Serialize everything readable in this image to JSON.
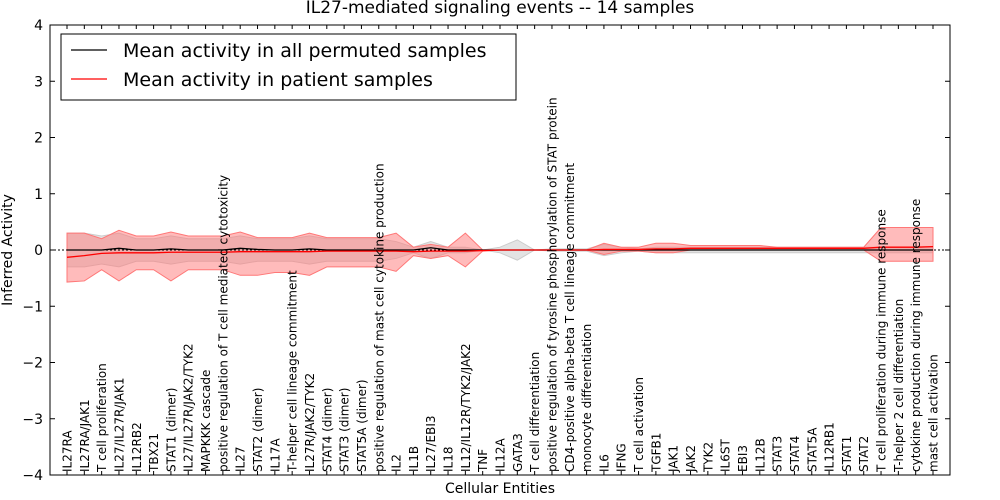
{
  "chart_data": {
    "type": "line",
    "title": "IL27-mediated signaling events -- 14 samples",
    "xlabel": "Cellular Entities",
    "ylabel": "Inferred Activity",
    "ylim": [
      -4,
      4
    ],
    "yticks": [
      -4,
      -3,
      -2,
      -1,
      0,
      1,
      2,
      3,
      4
    ],
    "ytick_labels": [
      "−4",
      "−3",
      "−2",
      "−1",
      "0",
      "1",
      "2",
      "3",
      "4"
    ],
    "legend_position": "top-left",
    "categories": [
      "IL27RA",
      "IL27RA/JAK1",
      "T cell proliferation",
      "IL27/IL27R/JAK1",
      "IL12RB2",
      "TBX21",
      "STAT1 (dimer)",
      "IL27/IL27R/JAK2/TYK2",
      "MAPKKK cascade",
      "positive regulation of T cell mediated cytotoxicity",
      "IL27",
      "STAT2 (dimer)",
      "IL17A",
      "T-helper cell lineage commitment",
      "IL27R/JAK2/TYK2",
      "STAT4 (dimer)",
      "STAT3 (dimer)",
      "STAT5A (dimer)",
      "positive regulation of mast cell cytokine production",
      "IL2",
      "IL1B",
      "IL27/EBI3",
      "IL18",
      "IL12/IL12R/TYK2/JAK2",
      "TNF",
      "IL12A",
      "GATA3",
      "T cell differentiation",
      "positive regulation of tyrosine phosphorylation of STAT protein",
      "CD4-positive alpha-beta T cell lineage commitment",
      "monocyte differentiation",
      "IL6",
      "IFNG",
      "T cell activation",
      "TGFB1",
      "JAK1",
      "JAK2",
      "TYK2",
      "IL6ST",
      "EBI3",
      "IL12B",
      "STAT3",
      "STAT4",
      "STAT5A",
      "IL12RB1",
      "STAT1",
      "STAT2",
      "T cell proliferation during immune response",
      "T-helper 2 cell differentiation",
      "cytokine production during immune response",
      "mast cell activation"
    ],
    "series": [
      {
        "name": "Mean activity in all permuted samples",
        "color": "#000000",
        "values": [
          0.0,
          0.0,
          0.0,
          0.03,
          0.0,
          0.0,
          0.02,
          0.0,
          0.0,
          0.0,
          0.03,
          0.01,
          0.0,
          0.0,
          0.02,
          0.0,
          0.0,
          0.0,
          0.0,
          0.0,
          0.0,
          0.04,
          0.0,
          0.0,
          0.0,
          0.0,
          0.0,
          0.0,
          0.0,
          0.0,
          0.0,
          0.0,
          0.0,
          0.0,
          0.0,
          0.0,
          0.0,
          0.0,
          0.0,
          0.0,
          0.0,
          0.0,
          0.0,
          0.0,
          0.0,
          0.0,
          0.0,
          0.0,
          0.0,
          0.0,
          0.0
        ],
        "band_upper": [
          0.3,
          0.3,
          0.25,
          0.3,
          0.2,
          0.2,
          0.25,
          0.2,
          0.2,
          0.2,
          0.25,
          0.2,
          0.2,
          0.2,
          0.25,
          0.2,
          0.2,
          0.2,
          0.2,
          0.15,
          0.05,
          0.15,
          0.05,
          0.05,
          0.0,
          0.05,
          0.18,
          0.0,
          0.02,
          0.02,
          0.02,
          0.1,
          0.05,
          0.02,
          0.05,
          0.05,
          0.05,
          0.05,
          0.05,
          0.05,
          0.05,
          0.05,
          0.05,
          0.05,
          0.05,
          0.05,
          0.05,
          0.05,
          0.05,
          0.05,
          0.05
        ],
        "band_lower": [
          -0.3,
          -0.3,
          -0.25,
          -0.3,
          -0.2,
          -0.2,
          -0.25,
          -0.2,
          -0.2,
          -0.2,
          -0.25,
          -0.2,
          -0.2,
          -0.2,
          -0.25,
          -0.2,
          -0.2,
          -0.2,
          -0.2,
          -0.15,
          -0.05,
          -0.15,
          -0.05,
          -0.05,
          0.0,
          -0.05,
          -0.18,
          0.0,
          -0.02,
          -0.02,
          -0.02,
          -0.1,
          -0.05,
          -0.02,
          -0.05,
          -0.05,
          -0.05,
          -0.05,
          -0.05,
          -0.05,
          -0.05,
          -0.05,
          -0.05,
          -0.05,
          -0.05,
          -0.05,
          -0.05,
          -0.05,
          -0.05,
          -0.05,
          -0.05
        ],
        "band_color": "#cccccc"
      },
      {
        "name": "Mean activity in patient samples",
        "color": "#ff0000",
        "values": [
          -0.13,
          -0.1,
          -0.06,
          -0.05,
          -0.05,
          -0.05,
          -0.04,
          -0.04,
          -0.04,
          -0.04,
          -0.03,
          -0.03,
          -0.03,
          -0.03,
          -0.03,
          -0.02,
          -0.02,
          -0.02,
          -0.02,
          -0.02,
          -0.03,
          -0.02,
          -0.02,
          -0.02,
          -0.01,
          0.0,
          0.0,
          0.0,
          0.0,
          0.0,
          0.0,
          0.01,
          0.01,
          0.01,
          0.02,
          0.02,
          0.03,
          0.03,
          0.03,
          0.03,
          0.03,
          0.03,
          0.03,
          0.03,
          0.03,
          0.03,
          0.03,
          0.05,
          0.05,
          0.05,
          0.06
        ],
        "band_upper": [
          0.3,
          0.3,
          0.2,
          0.35,
          0.25,
          0.25,
          0.32,
          0.25,
          0.25,
          0.25,
          0.32,
          0.22,
          0.22,
          0.22,
          0.3,
          0.22,
          0.22,
          0.22,
          0.22,
          0.3,
          0.05,
          0.1,
          0.05,
          0.3,
          0.0,
          0.0,
          0.0,
          0.0,
          0.0,
          0.0,
          0.0,
          0.12,
          0.05,
          0.05,
          0.12,
          0.12,
          0.08,
          0.08,
          0.08,
          0.08,
          0.08,
          0.05,
          0.05,
          0.05,
          0.05,
          0.05,
          0.05,
          0.4,
          0.4,
          0.4,
          0.4
        ],
        "band_lower": [
          -0.57,
          -0.55,
          -0.35,
          -0.55,
          -0.35,
          -0.35,
          -0.55,
          -0.35,
          -0.35,
          -0.35,
          -0.45,
          -0.45,
          -0.4,
          -0.4,
          -0.45,
          -0.3,
          -0.3,
          -0.3,
          -0.3,
          -0.38,
          -0.1,
          -0.15,
          -0.1,
          -0.3,
          -0.02,
          0.0,
          0.0,
          0.0,
          0.0,
          0.0,
          0.0,
          -0.08,
          -0.02,
          -0.02,
          -0.05,
          -0.05,
          0.0,
          0.0,
          0.0,
          0.0,
          0.0,
          0.0,
          0.0,
          0.0,
          0.0,
          0.0,
          0.0,
          -0.2,
          -0.2,
          -0.2,
          -0.2
        ],
        "band_color": "#ff7777"
      }
    ]
  }
}
